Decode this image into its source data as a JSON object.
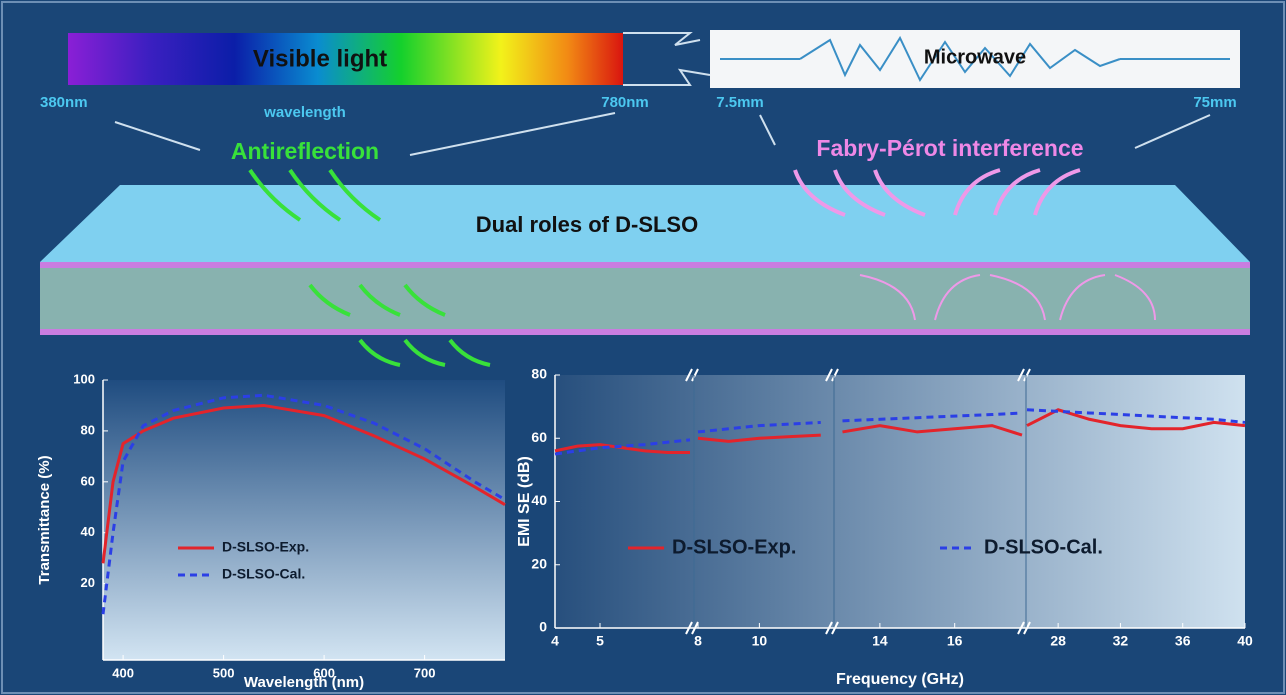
{
  "diagram": {
    "visible_label": "Visible light",
    "microwave_label": "Microwave",
    "left_start": "380nm",
    "axis_word": "wavelength",
    "left_end": "780nm",
    "mw_start": "7.5mm",
    "mw_end": "75mm",
    "left_effect": "Antireflection",
    "right_effect": "Fabry-Pérot interference",
    "slab_label": "Dual roles of D-SLSO"
  },
  "chart_data": [
    {
      "type": "line",
      "xlabel": "Wavelength (nm)",
      "ylabel": "Transmittance (%)",
      "xlim": [
        380,
        780
      ],
      "ylim": [
        -10,
        100
      ],
      "xticks": [
        400,
        500,
        600,
        700
      ],
      "yticks": [
        20,
        40,
        60,
        80,
        100
      ],
      "x": [
        380,
        390,
        400,
        420,
        450,
        500,
        540,
        600,
        650,
        700,
        750,
        780
      ],
      "series": [
        {
          "name": "D-SLSO-Exp.",
          "color": "#e3242b",
          "style": "solid",
          "values": [
            28,
            60,
            75,
            80,
            85,
            89,
            90,
            86,
            78,
            69,
            58,
            51
          ]
        },
        {
          "name": "D-SLSO-Cal.",
          "color": "#2b3fe6",
          "style": "dashed",
          "values": [
            8,
            40,
            68,
            82,
            88,
            93,
            94,
            90,
            83,
            73,
            60,
            53
          ]
        }
      ]
    },
    {
      "type": "line",
      "xlabel": "Frequency (GHz)",
      "ylabel": "EMI SE (dB)",
      "xsegments": [
        [
          4,
          7
        ],
        [
          8,
          12.3
        ],
        [
          12.8,
          17.8
        ],
        [
          26,
          40
        ]
      ],
      "ylim": [
        0,
        80
      ],
      "xticks": [
        4,
        5,
        8,
        10,
        14,
        16,
        28,
        32,
        36,
        40
      ],
      "yticks": [
        0,
        20,
        40,
        60,
        80
      ],
      "series": [
        {
          "name": "D-SLSO-Exp.",
          "color": "#e3242b",
          "style": "solid",
          "x": [
            4,
            4.5,
            5,
            5.5,
            6,
            6.5,
            7,
            null,
            8,
            9,
            10,
            11,
            12,
            null,
            13,
            14,
            15,
            16,
            17,
            17.8,
            null,
            26,
            28,
            30,
            32,
            34,
            36,
            38,
            40
          ],
          "values": [
            56,
            57.5,
            58,
            57,
            56,
            55.5,
            55.5,
            null,
            60,
            59,
            60,
            60.5,
            61,
            null,
            62,
            64,
            62,
            63,
            64,
            61,
            null,
            64,
            69,
            66,
            64,
            63,
            63,
            65,
            64
          ]
        },
        {
          "name": "D-SLSO-Cal.",
          "color": "#2b3fe6",
          "style": "dashed",
          "x": [
            4,
            5,
            6,
            7,
            null,
            8,
            10,
            12,
            null,
            13,
            15,
            17,
            17.8,
            null,
            26,
            30,
            34,
            38,
            40
          ],
          "values": [
            55,
            57,
            58,
            59.5,
            null,
            62,
            64,
            65,
            null,
            65.5,
            66.5,
            67.5,
            68,
            null,
            69,
            68,
            67,
            66,
            65
          ]
        }
      ]
    }
  ]
}
